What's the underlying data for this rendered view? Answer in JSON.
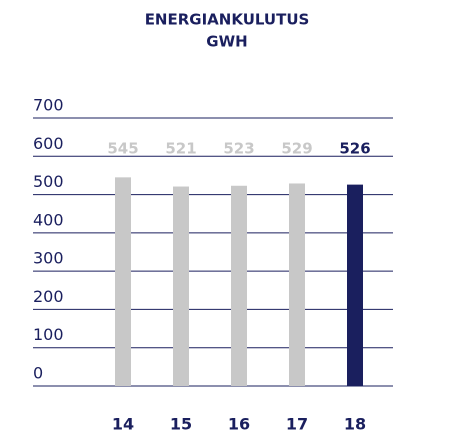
{
  "chart_data": {
    "type": "bar",
    "title": "ENERGIANKULUTUS",
    "subtitle": "GWH",
    "categories": [
      "14",
      "15",
      "16",
      "17",
      "18"
    ],
    "values": [
      545,
      521,
      523,
      529,
      526
    ],
    "colors": [
      "#c8c8c8",
      "#c8c8c8",
      "#c8c8c8",
      "#c8c8c8",
      "#1a1f5e"
    ],
    "ylim": [
      0,
      700
    ],
    "yticks": [
      0,
      100,
      200,
      300,
      400,
      500,
      600,
      700
    ],
    "grid": true
  }
}
